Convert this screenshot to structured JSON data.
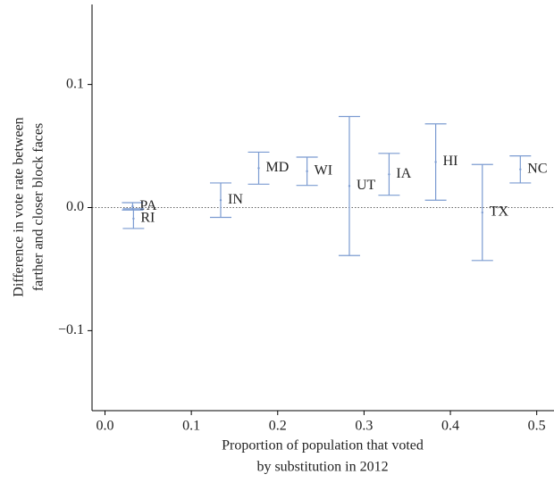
{
  "chart_data": {
    "type": "errorbar",
    "xlabel": [
      "Proportion of population that voted",
      "by substitution in 2012"
    ],
    "ylabel": [
      "Difference in vote rate between",
      "farther and closer  block faces"
    ],
    "categories": [
      "PA",
      "RI",
      "IN",
      "MD",
      "WI",
      "UT",
      "IA",
      "HI",
      "TX",
      "NC"
    ],
    "x": [
      0.032,
      0.033,
      0.134,
      0.178,
      0.234,
      0.283,
      0.329,
      0.383,
      0.437,
      0.481
    ],
    "values": [
      0.001,
      -0.009,
      0.006,
      0.032,
      0.0295,
      0.0175,
      0.027,
      0.037,
      -0.004,
      0.031
    ],
    "errors": [
      0.003,
      0.008,
      0.014,
      0.013,
      0.0115,
      0.0565,
      0.017,
      0.031,
      0.039,
      0.011
    ],
    "color": "#7b9bd1",
    "xlim": [
      -0.015,
      0.52
    ],
    "ylim": [
      -0.165,
      0.165
    ],
    "xticks": [
      {
        "value": 0,
        "label": "0.0"
      },
      0.1,
      0.2,
      0.3,
      0.4,
      0.5
    ],
    "yticks": [
      {
        "value": -0.1,
        "label": "−0.1"
      },
      {
        "value": 0,
        "label": "0.0"
      },
      0.1
    ],
    "hline": 0
  }
}
